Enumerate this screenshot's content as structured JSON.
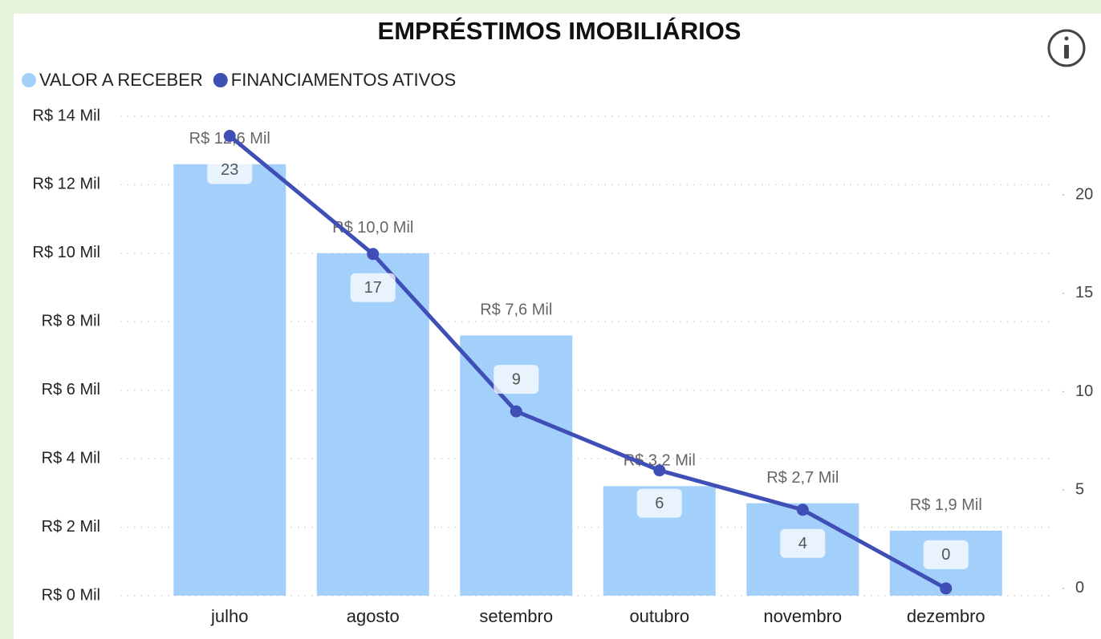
{
  "chart_data": {
    "type": "combo",
    "title": "EMPRÉSTIMOS IMOBILIÁRIOS",
    "categories": [
      "julho",
      "agosto",
      "setembro",
      "outubro",
      "novembro",
      "dezembro"
    ],
    "series": [
      {
        "name": "VALOR A RECEBER",
        "type": "bar",
        "color": "#a3d0fb",
        "values": [
          12.6,
          10.0,
          7.6,
          3.2,
          2.7,
          1.9
        ],
        "value_labels": [
          "R$ 12,6 Mil",
          "R$ 10,0 Mil",
          "R$ 7,6 Mil",
          "R$ 3,2 Mil",
          "R$ 2,7 Mil",
          "R$ 1,9 Mil"
        ]
      },
      {
        "name": "FINANCIAMENTOS ATIVOS",
        "type": "line",
        "color": "#3f4fb6",
        "axis": "y2",
        "values": [
          23,
          17,
          9,
          6,
          4,
          0
        ]
      }
    ],
    "ylim": [
      0,
      14
    ],
    "yticks": [
      {
        "value": 0,
        "label": "R$ 0 Mil"
      },
      {
        "value": 2,
        "label": "R$ 2 Mil"
      },
      {
        "value": 4,
        "label": "R$ 4 Mil"
      },
      {
        "value": 6,
        "label": "R$ 6 Mil"
      },
      {
        "value": 8,
        "label": "R$ 8 Mil"
      },
      {
        "value": 10,
        "label": "R$ 10 Mil"
      },
      {
        "value": 12,
        "label": "R$ 12 Mil"
      },
      {
        "value": 14,
        "label": "R$ 14 Mil"
      }
    ],
    "y2lim": [
      -0.37,
      24
    ],
    "y2ticks": [
      0,
      5,
      10,
      15,
      20
    ],
    "grid": true,
    "legend": "top-left"
  }
}
